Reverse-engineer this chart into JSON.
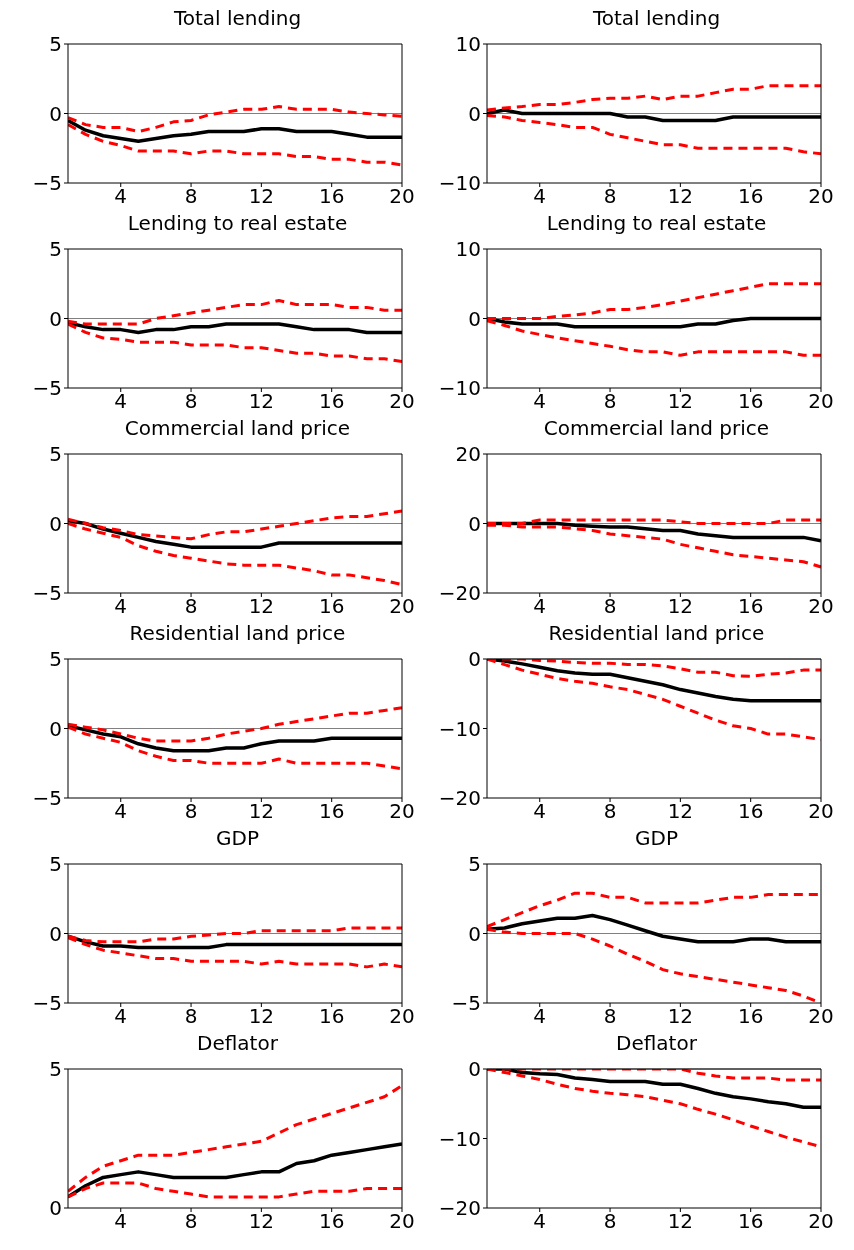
{
  "chart_data": [
    {
      "type": "line",
      "title": "Total lending",
      "x": [
        1,
        2,
        3,
        4,
        5,
        6,
        7,
        8,
        9,
        10,
        11,
        12,
        13,
        14,
        15,
        16,
        17,
        18,
        19,
        20
      ],
      "xlim": [
        1,
        20
      ],
      "xticks": [
        4,
        8,
        12,
        16,
        20
      ],
      "ylim": [
        -5,
        5
      ],
      "yticks": [
        -5,
        0,
        5
      ],
      "ref_lines": [
        {
          "axis": "y",
          "value": 0,
          "color": "#808080"
        }
      ],
      "series": [
        {
          "color": "#000000",
          "line_style": "solid",
          "values": [
            -0.5,
            -1.2,
            -1.6,
            -1.8,
            -2.0,
            -1.8,
            -1.6,
            -1.5,
            -1.3,
            -1.3,
            -1.3,
            -1.1,
            -1.1,
            -1.3,
            -1.3,
            -1.3,
            -1.5,
            -1.7,
            -1.7,
            -1.7
          ]
        },
        {
          "color": "#ff0000",
          "line_style": "dashed",
          "values": [
            -0.3,
            -0.8,
            -1.0,
            -1.0,
            -1.3,
            -1.0,
            -0.6,
            -0.5,
            -0.1,
            0.1,
            0.3,
            0.3,
            0.5,
            0.3,
            0.3,
            0.3,
            0.1,
            0,
            -0.1,
            -0.2
          ]
        },
        {
          "color": "#ff0000",
          "line_style": "dashed",
          "values": [
            -0.8,
            -1.5,
            -2.0,
            -2.3,
            -2.7,
            -2.7,
            -2.7,
            -2.9,
            -2.7,
            -2.7,
            -2.9,
            -2.9,
            -2.9,
            -3.1,
            -3.1,
            -3.3,
            -3.3,
            -3.5,
            -3.5,
            -3.7
          ]
        }
      ]
    },
    {
      "type": "line",
      "title": "Total lending",
      "x": [
        1,
        2,
        3,
        4,
        5,
        6,
        7,
        8,
        9,
        10,
        11,
        12,
        13,
        14,
        15,
        16,
        17,
        18,
        19,
        20
      ],
      "xlim": [
        1,
        20
      ],
      "xticks": [
        4,
        8,
        12,
        16,
        20
      ],
      "ylim": [
        -10,
        10
      ],
      "yticks": [
        -10,
        0,
        10
      ],
      "ref_lines": [
        {
          "axis": "y",
          "value": 0,
          "color": "#808080"
        }
      ],
      "series": [
        {
          "color": "#000000",
          "line_style": "solid",
          "values": [
            0,
            0.5,
            0,
            0,
            0,
            0,
            0,
            0,
            -0.5,
            -0.5,
            -1,
            -1,
            -1,
            -1,
            -0.5,
            -0.5,
            -0.5,
            -0.5,
            -0.5,
            -0.5
          ]
        },
        {
          "color": "#ff0000",
          "line_style": "dashed",
          "values": [
            0.5,
            0.8,
            1,
            1.3,
            1.3,
            1.6,
            2,
            2.2,
            2.2,
            2.5,
            2,
            2.5,
            2.5,
            3,
            3.5,
            3.5,
            4,
            4,
            4,
            4
          ]
        },
        {
          "color": "#ff0000",
          "line_style": "dashed",
          "values": [
            -0.3,
            -0.5,
            -1,
            -1.3,
            -1.6,
            -2,
            -2,
            -3,
            -3.5,
            -4,
            -4.5,
            -4.5,
            -5,
            -5,
            -5,
            -5,
            -5,
            -5,
            -5.5,
            -5.8
          ]
        }
      ]
    },
    {
      "type": "line",
      "title": "Lending to real estate",
      "x": [
        1,
        2,
        3,
        4,
        5,
        6,
        7,
        8,
        9,
        10,
        11,
        12,
        13,
        14,
        15,
        16,
        17,
        18,
        19,
        20
      ],
      "xlim": [
        1,
        20
      ],
      "xticks": [
        4,
        8,
        12,
        16,
        20
      ],
      "ylim": [
        -5,
        5
      ],
      "yticks": [
        -5,
        0,
        5
      ],
      "ref_lines": [
        {
          "axis": "y",
          "value": 0,
          "color": "#808080"
        }
      ],
      "series": [
        {
          "color": "#000000",
          "line_style": "solid",
          "values": [
            -0.3,
            -0.6,
            -0.8,
            -0.8,
            -1.0,
            -0.8,
            -0.8,
            -0.6,
            -0.6,
            -0.4,
            -0.4,
            -0.4,
            -0.4,
            -0.6,
            -0.8,
            -0.8,
            -0.8,
            -1.0,
            -1.0,
            -1.0
          ]
        },
        {
          "color": "#ff0000",
          "line_style": "dashed",
          "values": [
            -0.2,
            -0.4,
            -0.4,
            -0.4,
            -0.4,
            0,
            0.2,
            0.4,
            0.6,
            0.8,
            1.0,
            1.0,
            1.3,
            1.0,
            1.0,
            1.0,
            0.8,
            0.8,
            0.6,
            0.6
          ]
        },
        {
          "color": "#ff0000",
          "line_style": "dashed",
          "values": [
            -0.4,
            -1.0,
            -1.4,
            -1.5,
            -1.7,
            -1.7,
            -1.7,
            -1.9,
            -1.9,
            -1.9,
            -2.1,
            -2.1,
            -2.3,
            -2.5,
            -2.5,
            -2.7,
            -2.7,
            -2.9,
            -2.9,
            -3.1
          ]
        }
      ]
    },
    {
      "type": "line",
      "title": "Lending to real estate",
      "x": [
        1,
        2,
        3,
        4,
        5,
        6,
        7,
        8,
        9,
        10,
        11,
        12,
        13,
        14,
        15,
        16,
        17,
        18,
        19,
        20
      ],
      "xlim": [
        1,
        20
      ],
      "xticks": [
        4,
        8,
        12,
        16,
        20
      ],
      "ylim": [
        -10,
        10
      ],
      "yticks": [
        -10,
        0,
        10
      ],
      "ref_lines": [
        {
          "axis": "y",
          "value": 0,
          "color": "#808080"
        }
      ],
      "series": [
        {
          "color": "#000000",
          "line_style": "solid",
          "values": [
            0,
            -0.5,
            -0.8,
            -0.8,
            -0.8,
            -1.2,
            -1.2,
            -1.2,
            -1.2,
            -1.2,
            -1.2,
            -1.2,
            -0.8,
            -0.8,
            -0.3,
            0,
            0,
            0,
            0,
            0
          ]
        },
        {
          "color": "#ff0000",
          "line_style": "dashed",
          "values": [
            0,
            0,
            0,
            0,
            0.3,
            0.5,
            0.8,
            1.3,
            1.3,
            1.6,
            2,
            2.5,
            3,
            3.5,
            4,
            4.5,
            5,
            5,
            5,
            5
          ]
        },
        {
          "color": "#ff0000",
          "line_style": "dashed",
          "values": [
            -0.3,
            -1,
            -1.8,
            -2.3,
            -2.8,
            -3.2,
            -3.6,
            -4,
            -4.5,
            -4.8,
            -4.8,
            -5.3,
            -4.8,
            -4.8,
            -4.8,
            -4.8,
            -4.8,
            -4.8,
            -5.3,
            -5.3
          ]
        }
      ]
    },
    {
      "type": "line",
      "title": "Commercial land price",
      "x": [
        1,
        2,
        3,
        4,
        5,
        6,
        7,
        8,
        9,
        10,
        11,
        12,
        13,
        14,
        15,
        16,
        17,
        18,
        19,
        20
      ],
      "xlim": [
        1,
        20
      ],
      "xticks": [
        4,
        8,
        12,
        16,
        20
      ],
      "ylim": [
        -5,
        5
      ],
      "yticks": [
        -5,
        0,
        5
      ],
      "ref_lines": [
        {
          "axis": "y",
          "value": 0,
          "color": "#808080"
        }
      ],
      "series": [
        {
          "color": "#000000",
          "line_style": "solid",
          "values": [
            0.2,
            0,
            -0.4,
            -0.7,
            -1.0,
            -1.3,
            -1.5,
            -1.7,
            -1.7,
            -1.7,
            -1.7,
            -1.7,
            -1.4,
            -1.4,
            -1.4,
            -1.4,
            -1.4,
            -1.4,
            -1.4,
            -1.4
          ]
        },
        {
          "color": "#ff0000",
          "line_style": "dashed",
          "values": [
            0.3,
            0,
            -0.3,
            -0.5,
            -0.8,
            -0.9,
            -1.0,
            -1.1,
            -0.8,
            -0.6,
            -0.6,
            -0.4,
            -0.2,
            0,
            0.2,
            0.4,
            0.5,
            0.5,
            0.7,
            0.9
          ]
        },
        {
          "color": "#ff0000",
          "line_style": "dashed",
          "values": [
            0,
            -0.4,
            -0.7,
            -1.0,
            -1.6,
            -2.0,
            -2.3,
            -2.5,
            -2.7,
            -2.9,
            -3.0,
            -3.0,
            -3.0,
            -3.2,
            -3.4,
            -3.7,
            -3.7,
            -3.9,
            -4.1,
            -4.4
          ]
        }
      ]
    },
    {
      "type": "line",
      "title": "Commercial land price",
      "x": [
        1,
        2,
        3,
        4,
        5,
        6,
        7,
        8,
        9,
        10,
        11,
        12,
        13,
        14,
        15,
        16,
        17,
        18,
        19,
        20
      ],
      "xlim": [
        1,
        20
      ],
      "xticks": [
        4,
        8,
        12,
        16,
        20
      ],
      "ylim": [
        -20,
        20
      ],
      "yticks": [
        -20,
        0,
        20
      ],
      "ref_lines": [
        {
          "axis": "y",
          "value": 0,
          "color": "#808080"
        }
      ],
      "series": [
        {
          "color": "#000000",
          "line_style": "solid",
          "values": [
            0,
            0,
            0,
            0,
            0,
            -0.5,
            -0.8,
            -1,
            -1,
            -1.5,
            -2,
            -2,
            -3,
            -3.5,
            -4,
            -4,
            -4,
            -4,
            -4,
            -5
          ]
        },
        {
          "color": "#ff0000",
          "line_style": "dashed",
          "values": [
            0,
            0,
            0,
            1,
            1,
            1,
            1,
            1,
            1,
            1,
            1,
            0.5,
            0,
            0,
            0,
            0,
            0,
            1,
            1,
            1
          ]
        },
        {
          "color": "#ff0000",
          "line_style": "dashed",
          "values": [
            -0.5,
            -0.5,
            -1,
            -1,
            -1,
            -1.5,
            -2,
            -3,
            -3.5,
            -4,
            -4.5,
            -6,
            -7,
            -8,
            -9,
            -9.5,
            -10,
            -10.5,
            -11,
            -12.5
          ]
        }
      ]
    },
    {
      "type": "line",
      "title": "Residential land price",
      "x": [
        1,
        2,
        3,
        4,
        5,
        6,
        7,
        8,
        9,
        10,
        11,
        12,
        13,
        14,
        15,
        16,
        17,
        18,
        19,
        20
      ],
      "xlim": [
        1,
        20
      ],
      "xticks": [
        4,
        8,
        12,
        16,
        20
      ],
      "ylim": [
        -5,
        5
      ],
      "yticks": [
        -5,
        0,
        5
      ],
      "ref_lines": [
        {
          "axis": "y",
          "value": 0,
          "color": "#808080"
        }
      ],
      "series": [
        {
          "color": "#000000",
          "line_style": "solid",
          "values": [
            0.2,
            -0.1,
            -0.4,
            -0.6,
            -1.1,
            -1.4,
            -1.6,
            -1.6,
            -1.6,
            -1.4,
            -1.4,
            -1.1,
            -0.9,
            -0.9,
            -0.9,
            -0.7,
            -0.7,
            -0.7,
            -0.7,
            -0.7
          ]
        },
        {
          "color": "#ff0000",
          "line_style": "dashed",
          "values": [
            0.3,
            0.1,
            -0.1,
            -0.4,
            -0.7,
            -0.9,
            -0.9,
            -0.9,
            -0.7,
            -0.4,
            -0.2,
            0,
            0.3,
            0.5,
            0.7,
            0.9,
            1.1,
            1.1,
            1.3,
            1.5
          ]
        },
        {
          "color": "#ff0000",
          "line_style": "dashed",
          "values": [
            0.1,
            -0.4,
            -0.7,
            -1.0,
            -1.6,
            -2.0,
            -2.3,
            -2.3,
            -2.5,
            -2.5,
            -2.5,
            -2.5,
            -2.2,
            -2.5,
            -2.5,
            -2.5,
            -2.5,
            -2.5,
            -2.7,
            -2.9
          ]
        }
      ]
    },
    {
      "type": "line",
      "title": "Residential land price",
      "x": [
        1,
        2,
        3,
        4,
        5,
        6,
        7,
        8,
        9,
        10,
        11,
        12,
        13,
        14,
        15,
        16,
        17,
        18,
        19,
        20
      ],
      "xlim": [
        1,
        20
      ],
      "xticks": [
        4,
        8,
        12,
        16,
        20
      ],
      "ylim": [
        -20,
        0
      ],
      "yticks": [
        -20,
        -10,
        0
      ],
      "ref_lines": [
        {
          "axis": "y",
          "value": 0,
          "color": "#808080"
        }
      ],
      "series": [
        {
          "color": "#000000",
          "line_style": "solid",
          "values": [
            0,
            -0.3,
            -0.7,
            -1.2,
            -1.7,
            -2,
            -2.2,
            -2.2,
            -2.7,
            -3.2,
            -3.7,
            -4.4,
            -4.9,
            -5.4,
            -5.8,
            -6,
            -6,
            -6,
            -6,
            -6
          ]
        },
        {
          "color": "#ff0000",
          "line_style": "dashed",
          "values": [
            0,
            0,
            0,
            -0.2,
            -0.3,
            -0.5,
            -0.6,
            -0.6,
            -0.8,
            -0.8,
            -1,
            -1.4,
            -1.9,
            -1.9,
            -2.4,
            -2.5,
            -2.2,
            -2,
            -1.6,
            -1.6
          ]
        },
        {
          "color": "#ff0000",
          "line_style": "dashed",
          "values": [
            0,
            -0.8,
            -1.6,
            -2.2,
            -2.8,
            -3.2,
            -3.5,
            -4,
            -4.4,
            -5.1,
            -5.8,
            -6.8,
            -7.8,
            -8.8,
            -9.6,
            -10,
            -10.8,
            -10.8,
            -11.2,
            -11.6
          ]
        }
      ]
    },
    {
      "type": "line",
      "title": "GDP",
      "x": [
        1,
        2,
        3,
        4,
        5,
        6,
        7,
        8,
        9,
        10,
        11,
        12,
        13,
        14,
        15,
        16,
        17,
        18,
        19,
        20
      ],
      "xlim": [
        1,
        20
      ],
      "xticks": [
        4,
        8,
        12,
        16,
        20
      ],
      "ylim": [
        -5,
        5
      ],
      "yticks": [
        -5,
        0,
        5
      ],
      "ref_lines": [
        {
          "axis": "y",
          "value": 0,
          "color": "#808080"
        }
      ],
      "series": [
        {
          "color": "#000000",
          "line_style": "solid",
          "values": [
            -0.2,
            -0.6,
            -0.9,
            -0.9,
            -1.0,
            -1.0,
            -1.0,
            -1.0,
            -1.0,
            -0.8,
            -0.8,
            -0.8,
            -0.8,
            -0.8,
            -0.8,
            -0.8,
            -0.8,
            -0.8,
            -0.8,
            -0.8
          ]
        },
        {
          "color": "#ff0000",
          "line_style": "dashed",
          "values": [
            -0.2,
            -0.5,
            -0.6,
            -0.6,
            -0.6,
            -0.4,
            -0.4,
            -0.2,
            -0.1,
            0,
            0,
            0.2,
            0.2,
            0.2,
            0.2,
            0.2,
            0.4,
            0.4,
            0.4,
            0.4
          ]
        },
        {
          "color": "#ff0000",
          "line_style": "dashed",
          "values": [
            -0.3,
            -0.8,
            -1.2,
            -1.4,
            -1.6,
            -1.8,
            -1.8,
            -2.0,
            -2.0,
            -2.0,
            -2.0,
            -2.2,
            -2.0,
            -2.2,
            -2.2,
            -2.2,
            -2.2,
            -2.4,
            -2.2,
            -2.4
          ]
        }
      ]
    },
    {
      "type": "line",
      "title": "GDP",
      "x": [
        1,
        2,
        3,
        4,
        5,
        6,
        7,
        8,
        9,
        10,
        11,
        12,
        13,
        14,
        15,
        16,
        17,
        18,
        19,
        20
      ],
      "xlim": [
        1,
        20
      ],
      "xticks": [
        4,
        8,
        12,
        16,
        20
      ],
      "ylim": [
        -5,
        5
      ],
      "yticks": [
        -5,
        0,
        5
      ],
      "ref_lines": [
        {
          "axis": "y",
          "value": 0,
          "color": "#808080"
        }
      ],
      "series": [
        {
          "color": "#000000",
          "line_style": "solid",
          "values": [
            0.3,
            0.4,
            0.7,
            0.9,
            1.1,
            1.1,
            1.3,
            1.0,
            0.6,
            0.2,
            -0.2,
            -0.4,
            -0.6,
            -0.6,
            -0.6,
            -0.4,
            -0.4,
            -0.6,
            -0.6,
            -0.6
          ]
        },
        {
          "color": "#ff0000",
          "line_style": "dashed",
          "values": [
            0.5,
            1.0,
            1.5,
            2.0,
            2.4,
            2.9,
            2.9,
            2.6,
            2.6,
            2.2,
            2.2,
            2.2,
            2.2,
            2.4,
            2.6,
            2.6,
            2.8,
            2.8,
            2.8,
            2.8
          ]
        },
        {
          "color": "#ff0000",
          "line_style": "dashed",
          "values": [
            0.3,
            0.1,
            0,
            0,
            0,
            0,
            -0.4,
            -0.9,
            -1.5,
            -2.0,
            -2.6,
            -2.9,
            -3.1,
            -3.3,
            -3.5,
            -3.7,
            -3.9,
            -4.1,
            -4.5,
            -5.0
          ]
        }
      ]
    },
    {
      "type": "line",
      "title": "Deflator",
      "x": [
        1,
        2,
        3,
        4,
        5,
        6,
        7,
        8,
        9,
        10,
        11,
        12,
        13,
        14,
        15,
        16,
        17,
        18,
        19,
        20
      ],
      "xlim": [
        1,
        20
      ],
      "xticks": [
        4,
        8,
        12,
        16,
        20
      ],
      "ylim": [
        0,
        5
      ],
      "yticks": [
        0,
        5
      ],
      "series": [
        {
          "color": "#000000",
          "line_style": "solid",
          "values": [
            0.4,
            0.8,
            1.1,
            1.2,
            1.3,
            1.2,
            1.1,
            1.1,
            1.1,
            1.1,
            1.2,
            1.3,
            1.3,
            1.6,
            1.7,
            1.9,
            2.0,
            2.1,
            2.2,
            2.3
          ]
        },
        {
          "color": "#ff0000",
          "line_style": "dashed",
          "values": [
            0.6,
            1.1,
            1.5,
            1.7,
            1.9,
            1.9,
            1.9,
            2.0,
            2.1,
            2.2,
            2.3,
            2.4,
            2.7,
            3.0,
            3.2,
            3.4,
            3.6,
            3.8,
            4.0,
            4.4
          ]
        },
        {
          "color": "#ff0000",
          "line_style": "dashed",
          "values": [
            0.4,
            0.7,
            0.9,
            0.9,
            0.9,
            0.7,
            0.6,
            0.5,
            0.4,
            0.4,
            0.4,
            0.4,
            0.4,
            0.5,
            0.6,
            0.6,
            0.6,
            0.7,
            0.7,
            0.7
          ]
        }
      ]
    },
    {
      "type": "line",
      "title": "Deflator",
      "x": [
        1,
        2,
        3,
        4,
        5,
        6,
        7,
        8,
        9,
        10,
        11,
        12,
        13,
        14,
        15,
        16,
        17,
        18,
        19,
        20
      ],
      "xlim": [
        1,
        20
      ],
      "xticks": [
        4,
        8,
        12,
        16,
        20
      ],
      "ylim": [
        -20,
        0
      ],
      "yticks": [
        -20,
        -10,
        0
      ],
      "ref_lines": [
        {
          "axis": "y",
          "value": 0,
          "color": "#808080"
        }
      ],
      "series": [
        {
          "color": "#000000",
          "line_style": "solid",
          "values": [
            0,
            0,
            -0.5,
            -0.7,
            -0.8,
            -1.3,
            -1.5,
            -1.8,
            -1.8,
            -1.8,
            -2.2,
            -2.2,
            -2.8,
            -3.5,
            -4,
            -4.3,
            -4.7,
            -5,
            -5.5,
            -5.5
          ]
        },
        {
          "color": "#ff0000",
          "line_style": "dashed",
          "values": [
            0,
            0,
            0,
            0,
            0,
            0,
            0,
            0,
            0,
            0,
            0,
            0,
            -0.6,
            -1,
            -1.3,
            -1.3,
            -1.3,
            -1.6,
            -1.6,
            -1.6
          ]
        },
        {
          "color": "#ff0000",
          "line_style": "dashed",
          "values": [
            0,
            -0.5,
            -1,
            -1.5,
            -2.2,
            -2.8,
            -3.2,
            -3.5,
            -3.7,
            -4,
            -4.5,
            -5,
            -5.8,
            -6.5,
            -7.3,
            -8.2,
            -9,
            -9.8,
            -10.5,
            -11.2
          ]
        }
      ]
    }
  ]
}
